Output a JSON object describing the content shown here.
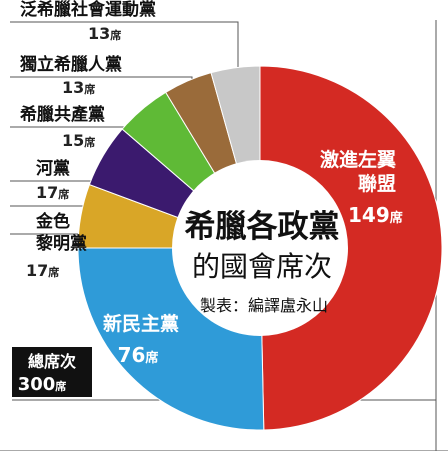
{
  "chart_data": {
    "type": "pie",
    "title": "希臘各政黨",
    "subtitle": "的國會席次",
    "credit": "製表：編譯盧永山",
    "total_label": "總席次",
    "total_value": "300",
    "unit": "席",
    "slices": [
      {
        "name": "激進左翼聯盟",
        "value": 149,
        "color": "#d42a23"
      },
      {
        "name": "新民主黨",
        "value": 76,
        "color": "#2f9bd8"
      },
      {
        "name": "金色黎明黨",
        "value": 17,
        "color": "#d9a627"
      },
      {
        "name": "河黨",
        "value": 17,
        "color": "#3b1a6e"
      },
      {
        "name": "希臘共產黨",
        "value": 15,
        "color": "#5fba36"
      },
      {
        "name": "獨立希臘人黨",
        "value": 13,
        "color": "#9a6b3a"
      },
      {
        "name": "泛希臘社會運動黨",
        "value": 13,
        "color": "#c8c8c8"
      }
    ]
  }
}
